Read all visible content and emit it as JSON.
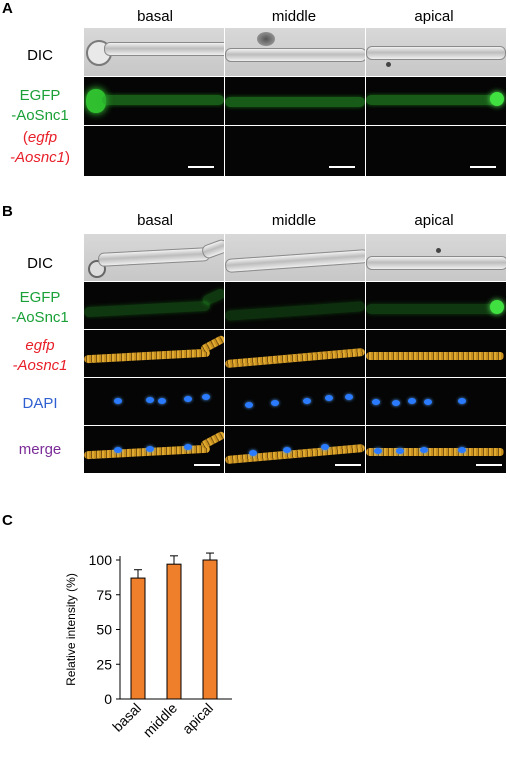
{
  "panelA": {
    "letter": "A",
    "columns": [
      "basal",
      "middle",
      "apical"
    ],
    "rows": {
      "dic": "DIC",
      "egfp_line1": "EGFP",
      "egfp_line2": "-AoSnc1",
      "mutant_open": "(",
      "mutant_line1": "egfp",
      "mutant_line2": "-Aosnc1",
      "mutant_close": ")"
    }
  },
  "panelB": {
    "letter": "B",
    "columns": [
      "basal",
      "middle",
      "apical"
    ],
    "rows": {
      "dic": "DIC",
      "egfp_line1": "EGFP",
      "egfp_line2": "-AoSnc1",
      "mutant_line1": "egfp",
      "mutant_line2": "-Aosnc1",
      "dapi": "DAPI",
      "merge": "merge"
    }
  },
  "panelC": {
    "letter": "C",
    "chart_data": {
      "type": "bar",
      "categories": [
        "basal",
        "middle",
        "apical"
      ],
      "values": [
        87,
        97,
        100
      ],
      "errors": [
        6,
        6,
        5
      ],
      "ylabel": "Relative intensity (%)",
      "ylim": [
        0,
        100
      ],
      "yticks": [
        0,
        25,
        50,
        75,
        100
      ],
      "bar_color": "#f07f2b"
    }
  }
}
